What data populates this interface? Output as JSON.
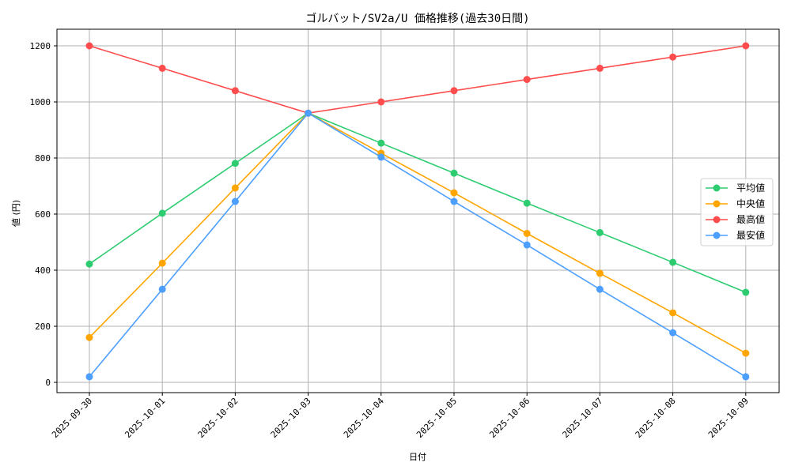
{
  "chart_data": {
    "type": "line",
    "title": "ゴルバット/SV2a/U 価格推移(過去30日間)",
    "xlabel": "日付",
    "ylabel": "値 (円)",
    "categories": [
      "2025-09-30",
      "2025-10-01",
      "2025-10-02",
      "2025-10-03",
      "2025-10-04",
      "2025-10-05",
      "2025-10-06",
      "2025-10-07",
      "2025-10-08",
      "2025-10-09"
    ],
    "ylim": [
      -40,
      1260
    ],
    "yticks": [
      0,
      200,
      400,
      600,
      800,
      1000,
      1200
    ],
    "grid": true,
    "legend_position": "center right",
    "series": [
      {
        "name": "平均値",
        "color": "#2ecc71",
        "values": [
          422,
          603,
          781,
          960,
          853,
          746,
          639,
          534,
          428,
          321
        ]
      },
      {
        "name": "中央値",
        "color": "#ffa500",
        "values": [
          160,
          425,
          693,
          960,
          817,
          676,
          531,
          389,
          248,
          104
        ]
      },
      {
        "name": "最高値",
        "color": "#ff4d4d",
        "values": [
          1200,
          1120,
          1040,
          960,
          1000,
          1040,
          1080,
          1120,
          1160,
          1200
        ]
      },
      {
        "name": "最安値",
        "color": "#4d9fff",
        "values": [
          20,
          332,
          645,
          960,
          803,
          645,
          490,
          332,
          177,
          20
        ]
      }
    ]
  }
}
